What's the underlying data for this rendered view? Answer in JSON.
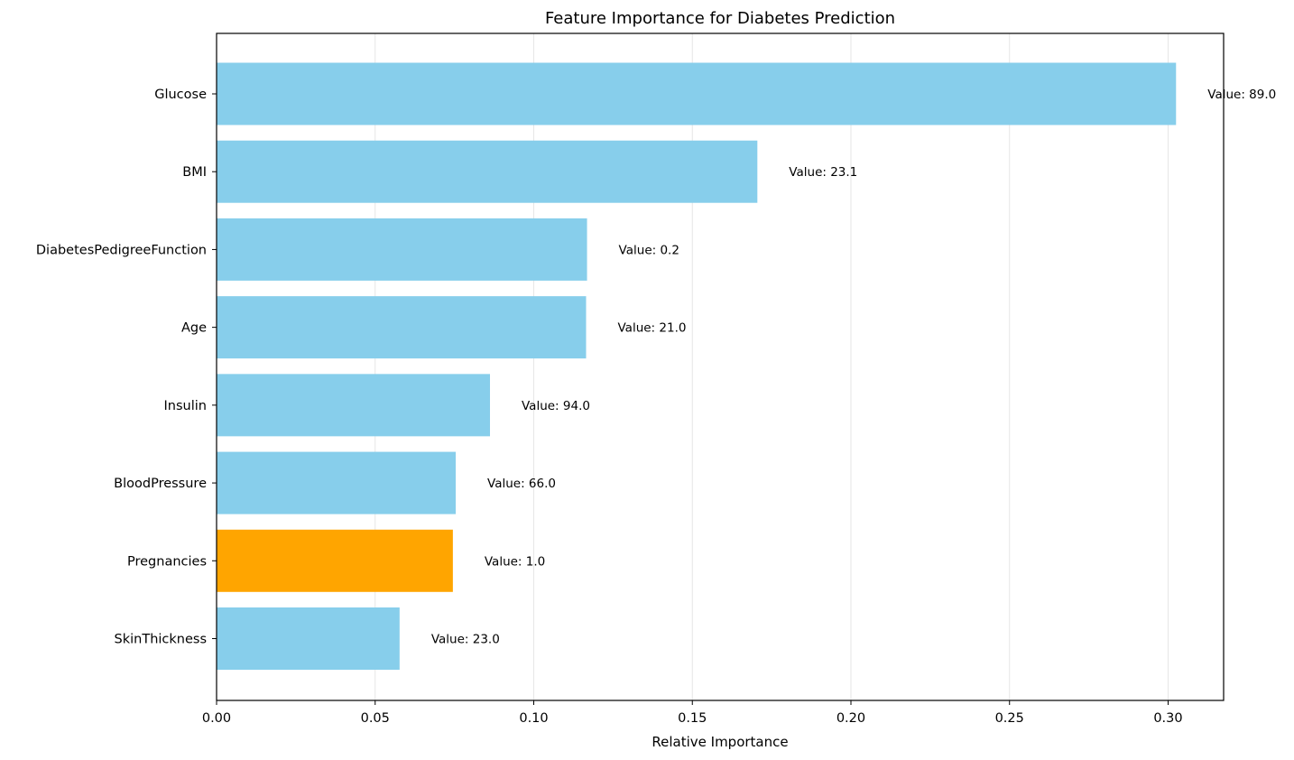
{
  "chart_data": {
    "type": "bar",
    "orientation": "horizontal",
    "title": "Feature Importance for Diabetes Prediction",
    "xlabel": "Relative Importance",
    "ylabel": "",
    "xlim": [
      0,
      0.3175
    ],
    "x_ticks": [
      0.0,
      0.05,
      0.1,
      0.15,
      0.2,
      0.25,
      0.3
    ],
    "x_tick_labels": [
      "0.00",
      "0.05",
      "0.10",
      "0.15",
      "0.20",
      "0.25",
      "0.30"
    ],
    "grid": "vertical",
    "categories": [
      "Glucose",
      "BMI",
      "DiabetesPedigreeFunction",
      "Age",
      "Insulin",
      "BloodPressure",
      "Pregnancies",
      "SkinThickness"
    ],
    "values": [
      0.3025,
      0.1705,
      0.1168,
      0.1165,
      0.0862,
      0.0754,
      0.0745,
      0.0577
    ],
    "annotations": [
      "Value: 89.0",
      "Value: 23.1",
      "Value: 0.2",
      "Value: 21.0",
      "Value: 94.0",
      "Value: 66.0",
      "Value: 1.0",
      "Value: 23.0"
    ],
    "colors": [
      "#87ceeb",
      "#87ceeb",
      "#87ceeb",
      "#87ceeb",
      "#87ceeb",
      "#87ceeb",
      "#ffa500",
      "#87ceeb"
    ]
  }
}
